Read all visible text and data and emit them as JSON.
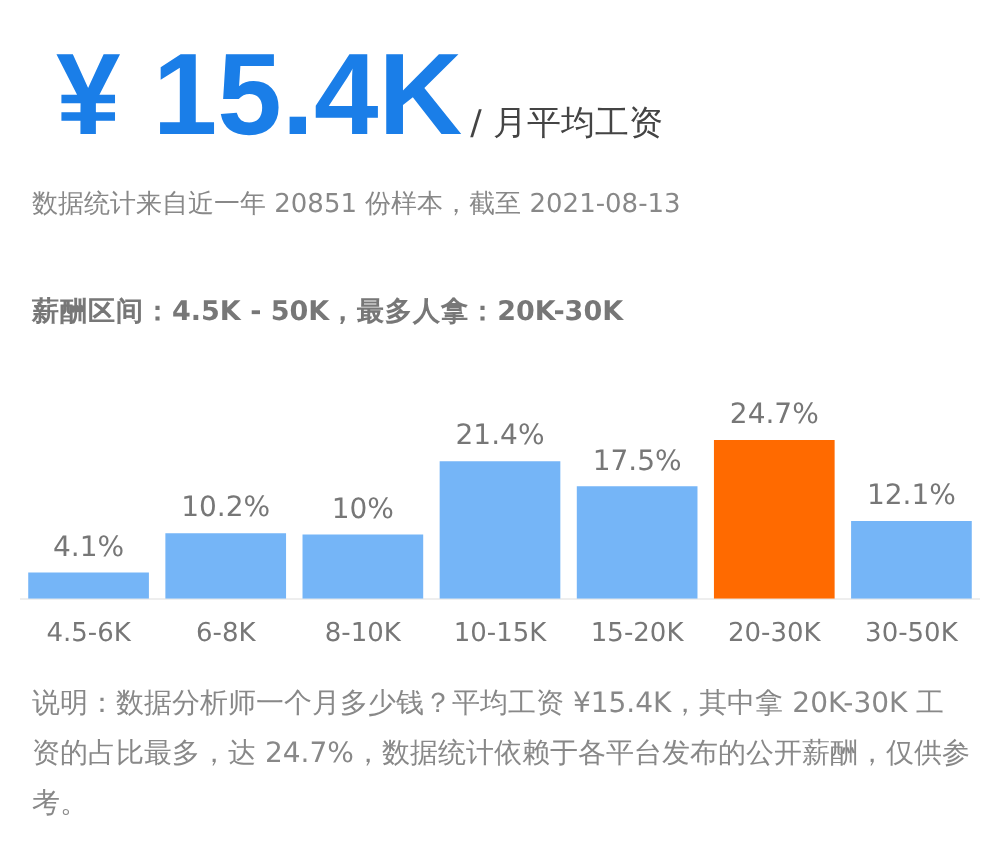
{
  "chart_data": {
    "type": "bar",
    "title": "¥ 15.4K",
    "subtitle": "/ 月平均工资",
    "annotations": [
      "数据统计来自近一年 20851 份样本，截至 2021-08-13",
      "薪酬区间：4.5K - 50K，最多人拿：20K-30K",
      "说明：数据分析师一个月多少钱？平均工资 ¥15.4K，其中拿 20K-30K 工资的占比最多，达 24.7%，数据统计依赖于各平台发布的公开薪酬，仅供参考。"
    ],
    "categories": [
      "4.5-6K",
      "6-8K",
      "8-10K",
      "10-15K",
      "15-20K",
      "20-30K",
      "30-50K"
    ],
    "values": [
      4.1,
      10.2,
      10,
      21.4,
      17.5,
      24.7,
      12.1
    ],
    "colors": [
      "#75b5f7",
      "#75b5f7",
      "#75b5f7",
      "#75b5f7",
      "#75b5f7",
      "#ff6a00",
      "#75b5f7"
    ],
    "value_labels": [
      "4.1%",
      "10.2%",
      "10%",
      "21.4%",
      "17.5%",
      "24.7%",
      "12.1%"
    ],
    "legend": false,
    "grid": false
  }
}
